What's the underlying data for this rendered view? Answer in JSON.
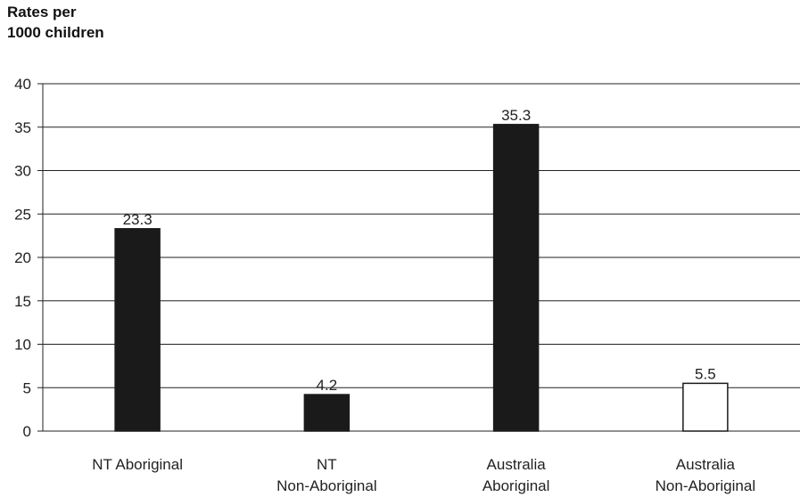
{
  "chart_data": {
    "type": "bar",
    "ylabel_lines": [
      "Rates per",
      "1000 children"
    ],
    "categories": [
      [
        "NT Aboriginal"
      ],
      [
        "NT",
        "Non-Aboriginal"
      ],
      [
        "Australia",
        "Aboriginal"
      ],
      [
        "Australia",
        "Non-Aboriginal"
      ]
    ],
    "values": [
      23.3,
      4.2,
      35.3,
      5.5
    ],
    "data_labels": [
      "23.3",
      "4.2",
      "35.3",
      "5.5"
    ],
    "bar_fills": [
      "#1a1a1a",
      "#1a1a1a",
      "#1a1a1a",
      "#ffffff"
    ],
    "ylim": [
      0,
      40
    ],
    "yticks": [
      0,
      5,
      10,
      15,
      20,
      25,
      30,
      35,
      40
    ],
    "grid": true,
    "legend": "none"
  }
}
